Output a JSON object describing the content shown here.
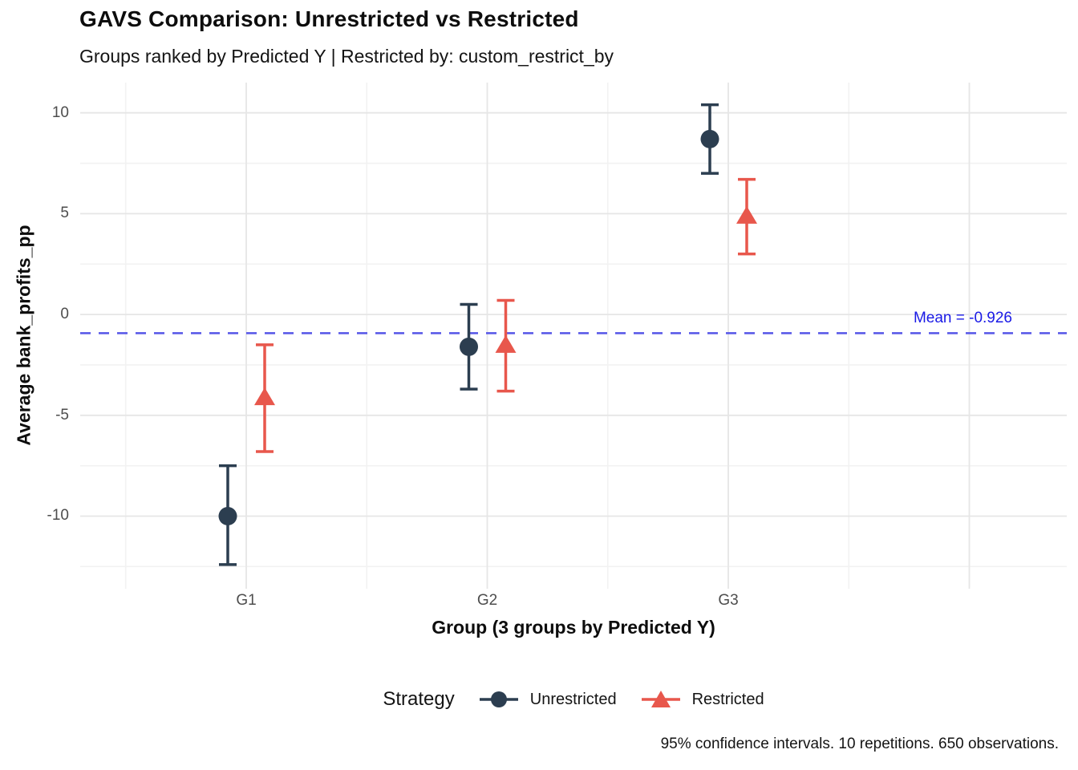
{
  "title": "GAVS Comparison: Unrestricted vs Restricted",
  "subtitle": "Groups ranked by Predicted Y | Restricted by: custom_restrict_by",
  "caption": "95% confidence intervals. 10 repetitions. 650 observations.",
  "chart_data": {
    "type": "pointrange",
    "title": "GAVS Comparison: Unrestricted vs Restricted",
    "subtitle": "Groups ranked by Predicted Y | Restricted by: custom_restrict_by",
    "xlabel": "Group (3 groups by Predicted Y)",
    "ylabel": "Average bank_profits_pp",
    "categories": [
      "G1",
      "G2",
      "G3"
    ],
    "series": [
      {
        "name": "Unrestricted",
        "marker": "circle",
        "color": "#2C3E50",
        "means": [
          -10.0,
          -1.6,
          8.7
        ],
        "ci_low": [
          -12.4,
          -3.7,
          7.0
        ],
        "ci_high": [
          -7.5,
          0.5,
          10.4
        ]
      },
      {
        "name": "Restricted",
        "marker": "triangle",
        "color": "#E8574C",
        "means": [
          -4.1,
          -1.5,
          4.9
        ],
        "ci_low": [
          -6.8,
          -3.8,
          3.0
        ],
        "ci_high": [
          -1.5,
          0.7,
          6.7
        ]
      }
    ],
    "yticks": [
      10,
      5,
      0,
      -5,
      -10
    ],
    "yminor": [
      7.5,
      2.5,
      -2.5,
      -7.5,
      -12.5
    ],
    "ylim": [
      -13.6,
      11.5
    ],
    "grid": true,
    "legend": {
      "title": "Strategy",
      "position": "bottom"
    },
    "mean_line": {
      "value": -0.926,
      "label": "Mean = -0.926",
      "line_color": "#5555E8",
      "label_color": "#1A1AE6",
      "style": "dashed"
    },
    "colors": {
      "grid_major": "#E6E6E6",
      "grid_minor": "#F2F2F2",
      "axis_text": "#4d4d4d"
    }
  }
}
